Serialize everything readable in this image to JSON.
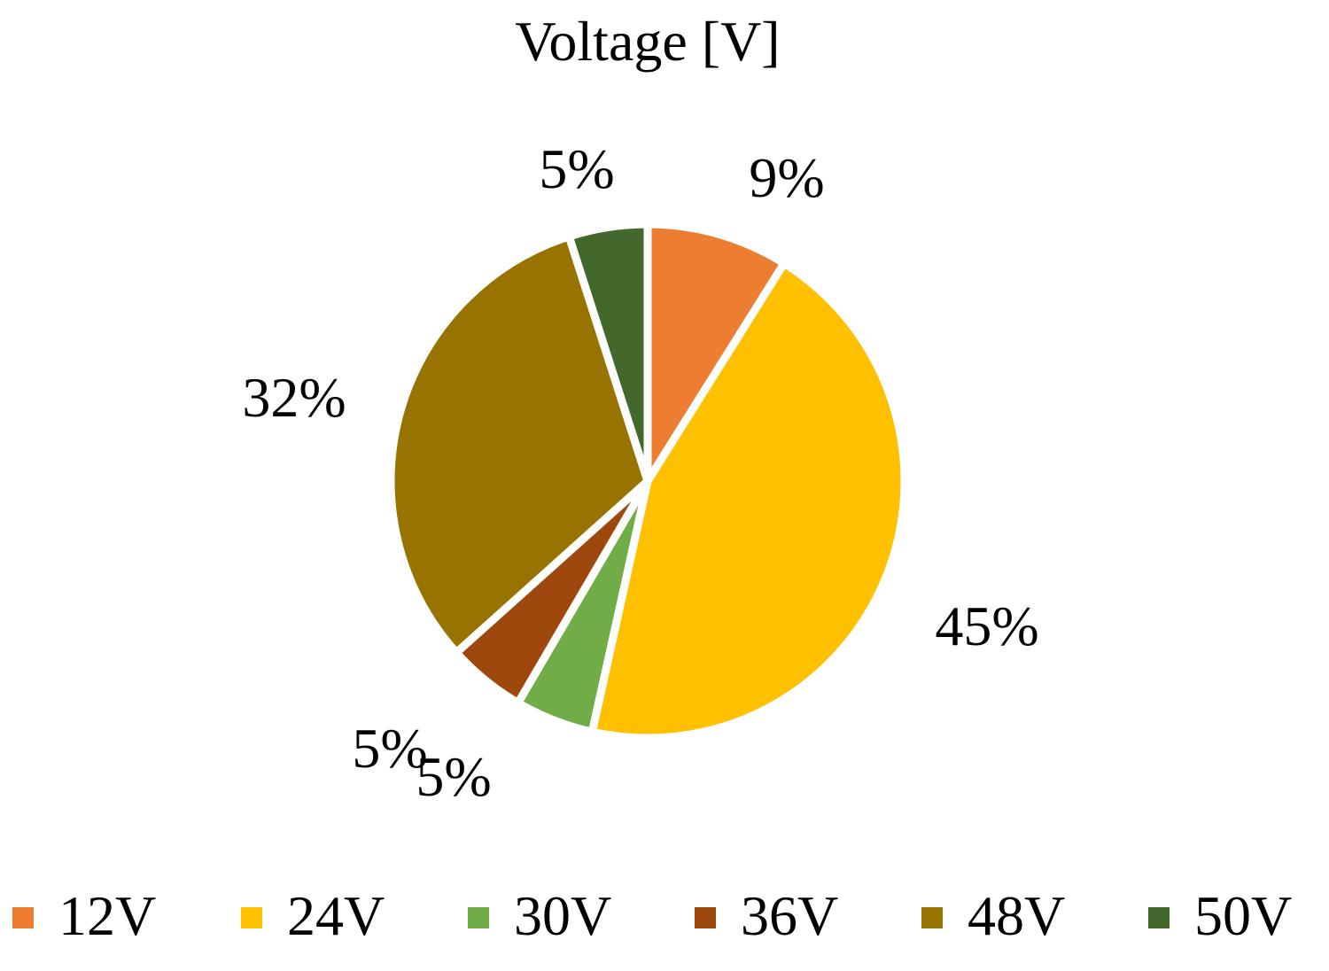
{
  "chart_data": {
    "type": "pie",
    "title": "Voltage [V]",
    "categories": [
      "12V",
      "24V",
      "30V",
      "36V",
      "48V",
      "50V"
    ],
    "values": [
      9,
      45,
      5,
      5,
      32,
      5
    ],
    "data_labels": [
      "9%",
      "45%",
      "5%",
      "5%",
      "32%",
      "5%"
    ],
    "colors": [
      "#ED7D31",
      "#FFC000",
      "#70AD47",
      "#9E480E",
      "#997300",
      "#43682B"
    ],
    "legend": "bottom",
    "start_angle_deg": 0,
    "direction": "clockwise"
  }
}
